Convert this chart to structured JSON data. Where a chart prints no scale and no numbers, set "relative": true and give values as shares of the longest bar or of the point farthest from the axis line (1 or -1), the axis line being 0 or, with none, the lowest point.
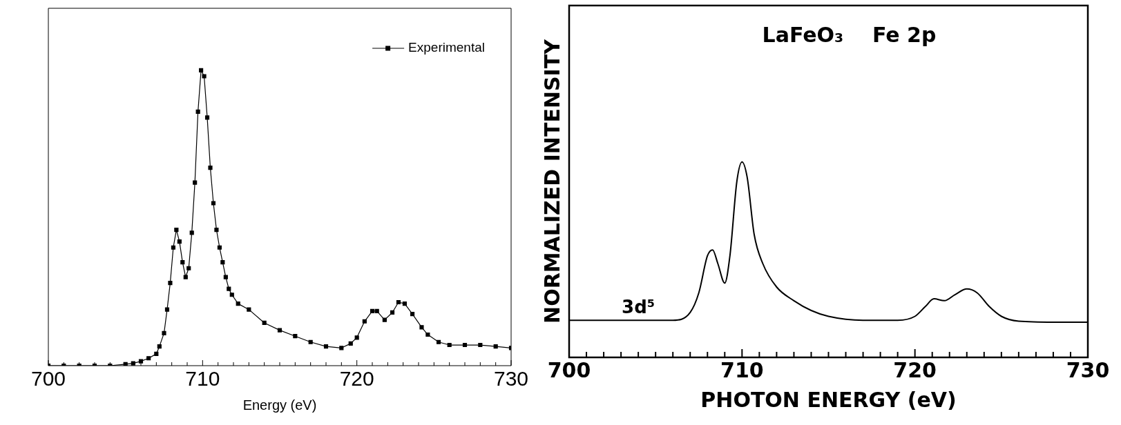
{
  "chart_data": [
    {
      "type": "line",
      "relative": true,
      "xlabel": "Energy (eV)",
      "xlim": [
        700,
        730
      ],
      "xticks": [
        700,
        {
          "value": 701,
          "label": null
        },
        {
          "value": 702,
          "label": null
        },
        {
          "value": 703,
          "label": null
        },
        {
          "value": 704,
          "label": null
        },
        {
          "value": 705,
          "label": null
        },
        {
          "value": 706,
          "label": null
        },
        {
          "value": 707,
          "label": null
        },
        {
          "value": 708,
          "label": null
        },
        {
          "value": 709,
          "label": null
        },
        710,
        {
          "value": 711,
          "label": null
        },
        {
          "value": 712,
          "label": null
        },
        {
          "value": 713,
          "label": null
        },
        {
          "value": 714,
          "label": null
        },
        {
          "value": 715,
          "label": null
        },
        {
          "value": 716,
          "label": null
        },
        {
          "value": 717,
          "label": null
        },
        {
          "value": 718,
          "label": null
        },
        {
          "value": 719,
          "label": null
        },
        720,
        {
          "value": 721,
          "label": null
        },
        {
          "value": 722,
          "label": null
        },
        {
          "value": 723,
          "label": null
        },
        {
          "value": 724,
          "label": null
        },
        {
          "value": 725,
          "label": null
        },
        {
          "value": 726,
          "label": null
        },
        {
          "value": 727,
          "label": null
        },
        {
          "value": 728,
          "label": null
        },
        {
          "value": 729,
          "label": null
        },
        730
      ],
      "marker": "square",
      "legend": "top right",
      "series": [
        {
          "name": "Experimental",
          "color": "#000000",
          "x": [
            700,
            701,
            702,
            703,
            704,
            705,
            705.5,
            706,
            706.5,
            707,
            707.2,
            707.5,
            707.7,
            707.9,
            708.1,
            708.3,
            708.5,
            708.7,
            708.9,
            709.1,
            709.3,
            709.5,
            709.7,
            709.9,
            710.1,
            710.3,
            710.5,
            710.7,
            710.9,
            711.1,
            711.3,
            711.5,
            711.7,
            711.9,
            712.3,
            713,
            714,
            715,
            716,
            717,
            718,
            719,
            719.6,
            720,
            720.5,
            721,
            721.3,
            721.8,
            722.3,
            722.7,
            723.1,
            723.6,
            724.2,
            724.6,
            725.3,
            726,
            727,
            728,
            729,
            730
          ],
          "values": [
            0,
            0,
            0,
            0,
            0,
            0.005,
            0.008,
            0.015,
            0.025,
            0.04,
            0.065,
            0.11,
            0.19,
            0.28,
            0.4,
            0.46,
            0.42,
            0.35,
            0.3,
            0.33,
            0.45,
            0.62,
            0.86,
            1,
            0.98,
            0.84,
            0.67,
            0.55,
            0.46,
            0.4,
            0.35,
            0.3,
            0.26,
            0.24,
            0.21,
            0.19,
            0.145,
            0.12,
            0.1,
            0.08,
            0.065,
            0.06,
            0.075,
            0.095,
            0.15,
            0.185,
            0.185,
            0.155,
            0.18,
            0.215,
            0.21,
            0.175,
            0.13,
            0.105,
            0.08,
            0.07,
            0.07,
            0.07,
            0.065,
            0.06
          ]
        }
      ]
    },
    {
      "type": "line",
      "relative": true,
      "xlabel": "PHOTON ENERGY (eV)",
      "ylabel": "NORMALIZED INTENSITY",
      "xlim": [
        700,
        730
      ],
      "xticks": [
        700,
        {
          "value": 701,
          "label": null
        },
        {
          "value": 702,
          "label": null
        },
        {
          "value": 703,
          "label": null
        },
        {
          "value": 704,
          "label": null
        },
        {
          "value": 705,
          "label": null
        },
        {
          "value": 706,
          "label": null
        },
        {
          "value": 707,
          "label": null
        },
        {
          "value": 708,
          "label": null
        },
        {
          "value": 709,
          "label": null
        },
        710,
        {
          "value": 711,
          "label": null
        },
        {
          "value": 712,
          "label": null
        },
        {
          "value": 713,
          "label": null
        },
        {
          "value": 714,
          "label": null
        },
        {
          "value": 715,
          "label": null
        },
        {
          "value": 716,
          "label": null
        },
        {
          "value": 717,
          "label": null
        },
        {
          "value": 718,
          "label": null
        },
        {
          "value": 719,
          "label": null
        },
        720,
        {
          "value": 721,
          "label": null
        },
        {
          "value": 722,
          "label": null
        },
        {
          "value": 723,
          "label": null
        },
        {
          "value": 724,
          "label": null
        },
        {
          "value": 725,
          "label": null
        },
        {
          "value": 726,
          "label": null
        },
        {
          "value": 727,
          "label": null
        },
        {
          "value": 728,
          "label": null
        },
        {
          "value": 729,
          "label": null
        },
        730
      ],
      "annotations": [
        "LaFeO₃    Fe 2p",
        {
          "text": "3d⁵",
          "x": 704,
          "y": 0.19
        }
      ],
      "series": [
        {
          "color": "#000000",
          "x": [
            700,
            702,
            704,
            706,
            707,
            707.5,
            708,
            708.3,
            708.6,
            709,
            709.3,
            709.7,
            710,
            710.3,
            710.7,
            711.2,
            712,
            713,
            714,
            715,
            717,
            719,
            720,
            720.6,
            721.1,
            721.7,
            722.3,
            723,
            723.6,
            724.3,
            725,
            726,
            728,
            730
          ],
          "values": [
            0.19,
            0.19,
            0.19,
            0.19,
            0.23,
            0.33,
            0.52,
            0.55,
            0.48,
            0.38,
            0.52,
            0.9,
            1,
            0.92,
            0.63,
            0.48,
            0.36,
            0.29,
            0.24,
            0.21,
            0.19,
            0.19,
            0.21,
            0.26,
            0.3,
            0.29,
            0.32,
            0.35,
            0.33,
            0.26,
            0.21,
            0.185,
            0.18,
            0.18
          ]
        }
      ]
    }
  ]
}
